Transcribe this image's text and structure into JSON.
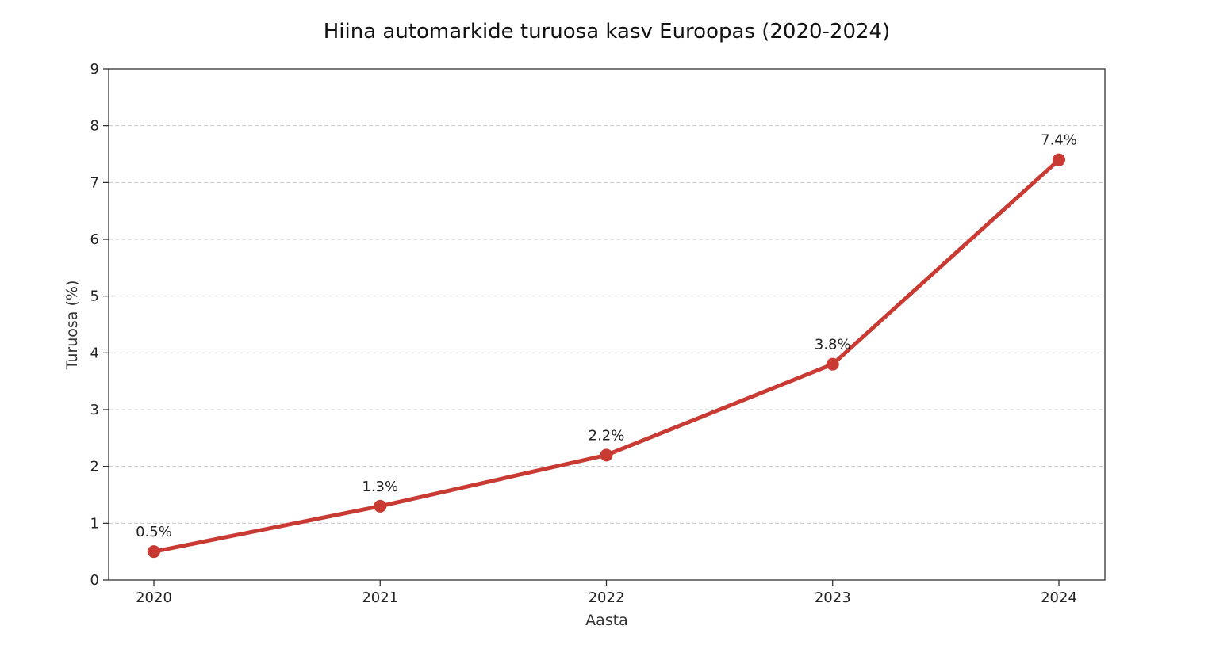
{
  "chart_data": {
    "type": "line",
    "title": "Hiina automarkide turuosa kasv Euroopas (2020-2024)",
    "xlabel": "Aasta",
    "ylabel": "Turuosa (%)",
    "categories": [
      "2020",
      "2021",
      "2022",
      "2023",
      "2024"
    ],
    "series": [
      {
        "values": [
          0.5,
          1.3,
          2.2,
          3.8,
          7.4
        ],
        "labels": [
          "0.5%",
          "1.3%",
          "2.2%",
          "3.8%",
          "7.4%"
        ],
        "color": "#c93a33"
      }
    ],
    "ylim": [
      0,
      9
    ],
    "yticks": [
      "0",
      "1",
      "2",
      "3",
      "4",
      "5",
      "6",
      "7",
      "8",
      "9"
    ],
    "grid": "horizontal dashed",
    "legend": "none"
  }
}
